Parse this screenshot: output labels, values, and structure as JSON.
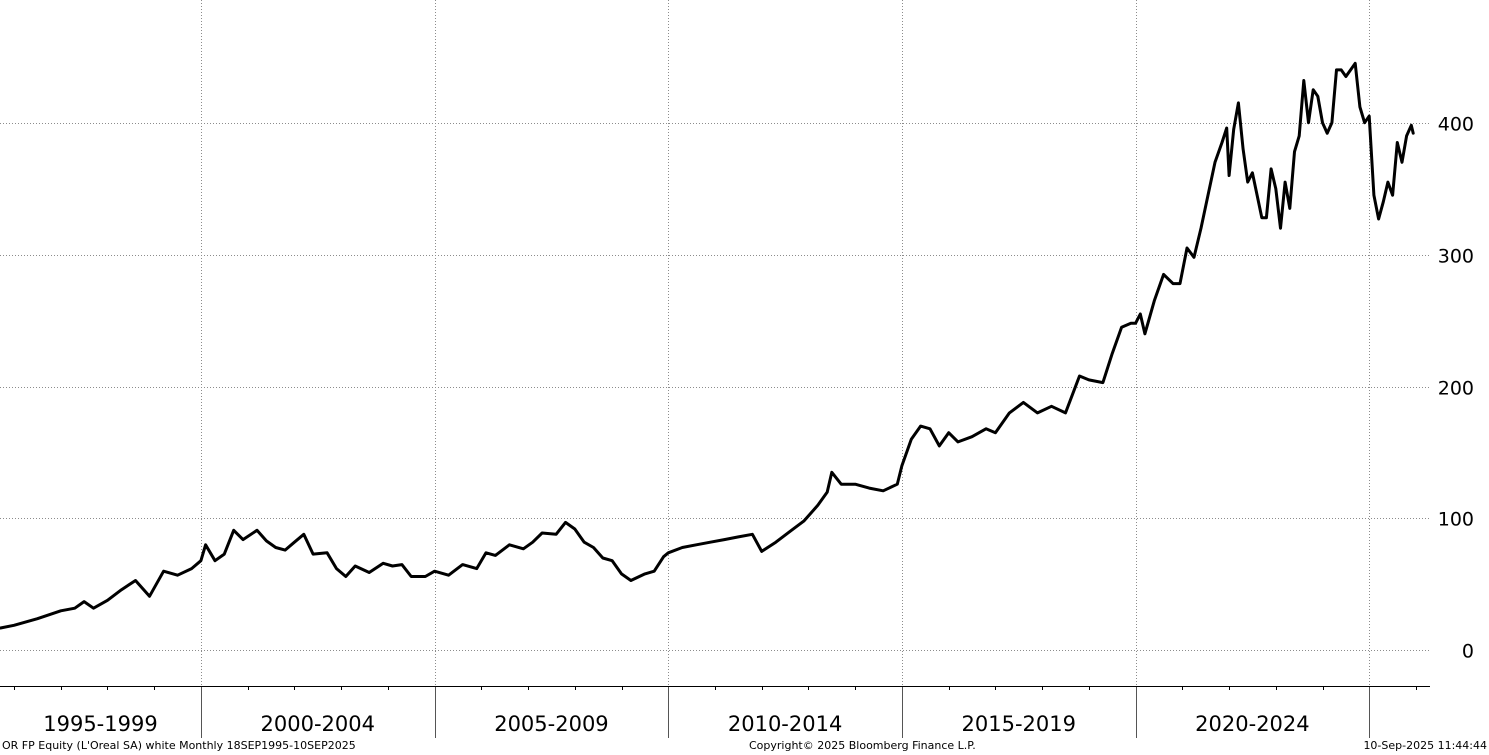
{
  "chart_data": {
    "type": "line",
    "title": "",
    "xlabel": "",
    "ylabel": "",
    "ylim": [
      -27,
      493
    ],
    "y_ticks": [
      0,
      100,
      200,
      300,
      400
    ],
    "x_period_labels": [
      "1995-1999",
      "2000-2004",
      "2005-2009",
      "2010-2014",
      "2015-2019",
      "2020-2024"
    ],
    "xlim_years": [
      1995.7,
      2026.3
    ],
    "grid": true,
    "line_color": "#000000",
    "series": [
      {
        "values": [
          [
            1995.71,
            17
          ],
          [
            1996.0,
            19
          ],
          [
            1996.5,
            24
          ],
          [
            1997.0,
            30
          ],
          [
            1997.3,
            32
          ],
          [
            1997.5,
            37
          ],
          [
            1997.7,
            32
          ],
          [
            1998.0,
            38
          ],
          [
            1998.3,
            46
          ],
          [
            1998.6,
            53
          ],
          [
            1998.9,
            41
          ],
          [
            1999.2,
            60
          ],
          [
            1999.5,
            57
          ],
          [
            1999.8,
            62
          ],
          [
            2000.0,
            68
          ],
          [
            2000.1,
            80
          ],
          [
            2000.3,
            68
          ],
          [
            2000.5,
            73
          ],
          [
            2000.7,
            91
          ],
          [
            2000.9,
            84
          ],
          [
            2001.2,
            91
          ],
          [
            2001.4,
            83
          ],
          [
            2001.6,
            78
          ],
          [
            2001.8,
            76
          ],
          [
            2002.0,
            82
          ],
          [
            2002.2,
            88
          ],
          [
            2002.4,
            73
          ],
          [
            2002.7,
            74
          ],
          [
            2002.9,
            62
          ],
          [
            2003.1,
            56
          ],
          [
            2003.3,
            64
          ],
          [
            2003.6,
            59
          ],
          [
            2003.9,
            66
          ],
          [
            2004.1,
            64
          ],
          [
            2004.3,
            65
          ],
          [
            2004.5,
            56
          ],
          [
            2004.8,
            56
          ],
          [
            2005.0,
            60
          ],
          [
            2005.3,
            57
          ],
          [
            2005.6,
            65
          ],
          [
            2005.9,
            62
          ],
          [
            2006.1,
            74
          ],
          [
            2006.3,
            72
          ],
          [
            2006.6,
            80
          ],
          [
            2006.9,
            77
          ],
          [
            2007.1,
            82
          ],
          [
            2007.3,
            89
          ],
          [
            2007.6,
            88
          ],
          [
            2007.8,
            97
          ],
          [
            2008.0,
            92
          ],
          [
            2008.2,
            82
          ],
          [
            2008.4,
            78
          ],
          [
            2008.6,
            70
          ],
          [
            2008.8,
            68
          ],
          [
            2009.0,
            58
          ],
          [
            2009.2,
            53
          ],
          [
            2009.5,
            58
          ],
          [
            2009.7,
            60
          ],
          [
            2009.9,
            71
          ],
          [
            2010.0,
            74
          ],
          [
            2010.3,
            78
          ],
          [
            2010.6,
            80
          ],
          [
            2010.9,
            82
          ],
          [
            2011.2,
            84
          ],
          [
            2011.5,
            86
          ],
          [
            2011.8,
            88
          ],
          [
            2012.0,
            75
          ],
          [
            2012.3,
            82
          ],
          [
            2012.6,
            90
          ],
          [
            2012.9,
            98
          ],
          [
            2013.2,
            110
          ],
          [
            2013.4,
            120
          ],
          [
            2013.5,
            135
          ],
          [
            2013.7,
            126
          ],
          [
            2014.0,
            126
          ],
          [
            2014.3,
            123
          ],
          [
            2014.6,
            121
          ],
          [
            2014.9,
            126
          ],
          [
            2015.0,
            140
          ],
          [
            2015.2,
            160
          ],
          [
            2015.4,
            170
          ],
          [
            2015.6,
            168
          ],
          [
            2015.8,
            155
          ],
          [
            2016.0,
            165
          ],
          [
            2016.2,
            158
          ],
          [
            2016.5,
            162
          ],
          [
            2016.8,
            168
          ],
          [
            2017.0,
            165
          ],
          [
            2017.3,
            180
          ],
          [
            2017.6,
            188
          ],
          [
            2017.9,
            180
          ],
          [
            2018.2,
            185
          ],
          [
            2018.5,
            180
          ],
          [
            2018.8,
            208
          ],
          [
            2019.0,
            205
          ],
          [
            2019.3,
            203
          ],
          [
            2019.5,
            225
          ],
          [
            2019.7,
            245
          ],
          [
            2019.9,
            248
          ],
          [
            2020.0,
            248
          ],
          [
            2020.1,
            255
          ],
          [
            2020.2,
            240
          ],
          [
            2020.4,
            265
          ],
          [
            2020.6,
            285
          ],
          [
            2020.8,
            278
          ],
          [
            2020.95,
            278
          ],
          [
            2021.1,
            305
          ],
          [
            2021.25,
            298
          ],
          [
            2021.4,
            320
          ],
          [
            2021.55,
            345
          ],
          [
            2021.7,
            370
          ],
          [
            2021.85,
            385
          ],
          [
            2021.95,
            396
          ],
          [
            2022.0,
            360
          ],
          [
            2022.1,
            395
          ],
          [
            2022.2,
            415
          ],
          [
            2022.3,
            380
          ],
          [
            2022.4,
            355
          ],
          [
            2022.5,
            362
          ],
          [
            2022.6,
            345
          ],
          [
            2022.7,
            328
          ],
          [
            2022.8,
            328
          ],
          [
            2022.9,
            365
          ],
          [
            2023.0,
            350
          ],
          [
            2023.1,
            320
          ],
          [
            2023.2,
            355
          ],
          [
            2023.3,
            335
          ],
          [
            2023.4,
            378
          ],
          [
            2023.5,
            390
          ],
          [
            2023.6,
            432
          ],
          [
            2023.7,
            400
          ],
          [
            2023.8,
            425
          ],
          [
            2023.9,
            420
          ],
          [
            2024.0,
            400
          ],
          [
            2024.1,
            392
          ],
          [
            2024.2,
            400
          ],
          [
            2024.3,
            440
          ],
          [
            2024.4,
            440
          ],
          [
            2024.5,
            435
          ],
          [
            2024.6,
            440
          ],
          [
            2024.7,
            445
          ],
          [
            2024.8,
            412
          ],
          [
            2024.9,
            400
          ],
          [
            2025.0,
            405
          ],
          [
            2025.1,
            345
          ],
          [
            2025.2,
            327
          ],
          [
            2025.3,
            340
          ],
          [
            2025.4,
            355
          ],
          [
            2025.5,
            345
          ],
          [
            2025.6,
            385
          ],
          [
            2025.7,
            370
          ],
          [
            2025.8,
            390
          ],
          [
            2025.9,
            398
          ],
          [
            2025.94,
            392
          ]
        ]
      }
    ]
  },
  "footer": {
    "left": "OR FP Equity (L'Oreal SA) white  Monthly 18SEP1995-10SEP2025",
    "center": "Copyright© 2025 Bloomberg Finance L.P.",
    "right": "10-Sep-2025 11:44:44"
  }
}
